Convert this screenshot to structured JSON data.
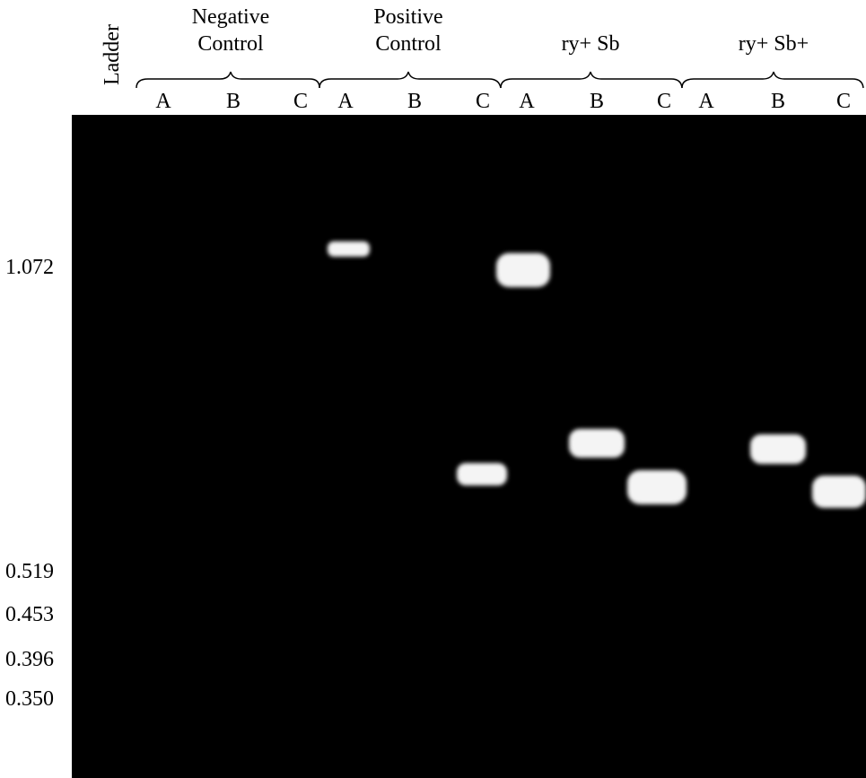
{
  "header": {
    "ladder": "Ladder",
    "groups": [
      {
        "label": [
          "Negative",
          "Control"
        ],
        "lanes": [
          "A",
          "B",
          "C"
        ]
      },
      {
        "label": [
          "Positive",
          "Control"
        ],
        "lanes": [
          "A",
          "B",
          "C"
        ]
      },
      {
        "label": [
          "ry+ Sb"
        ],
        "lanes": [
          "A",
          "B",
          "C"
        ]
      },
      {
        "label": [
          "ry+ Sb+"
        ],
        "lanes": [
          "A",
          "B",
          "C"
        ]
      }
    ]
  },
  "markers": [
    "1.072",
    "0.519",
    "0.453",
    "0.396",
    "0.350"
  ]
}
